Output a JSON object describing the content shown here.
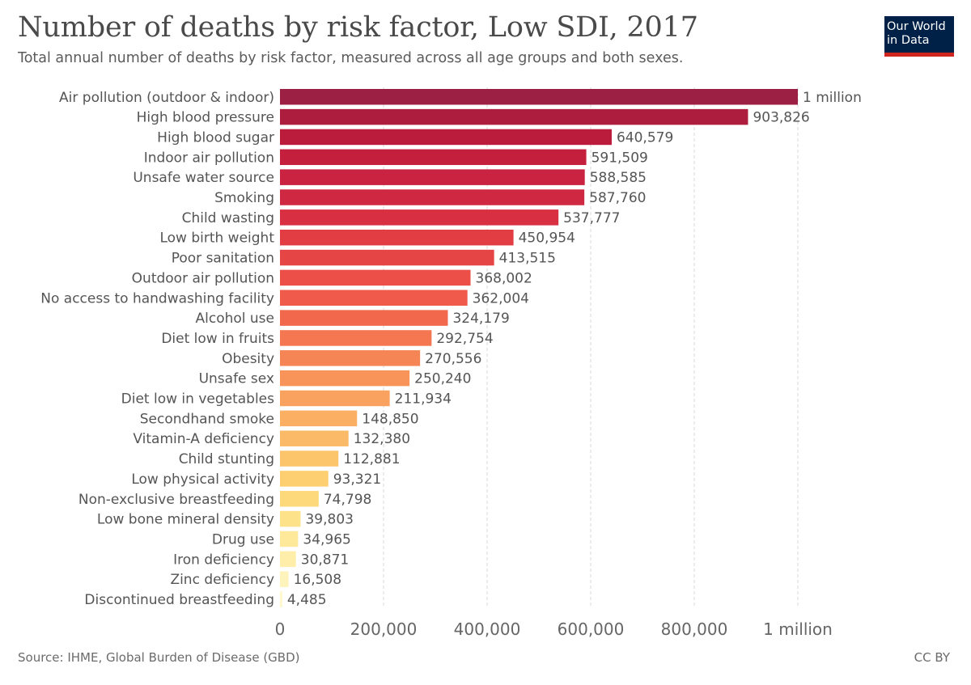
{
  "header": {
    "title": "Number of deaths by risk factor, Low SDI, 2017",
    "subtitle": "Total annual number of deaths by risk factor, measured across all age groups and both sexes."
  },
  "logo": {
    "line1": "Our World",
    "line2": "in Data"
  },
  "footer": {
    "source": "Source: IHME, Global Burden of Disease (GBD)",
    "license": "CC BY"
  },
  "chart_data": {
    "type": "bar",
    "orientation": "horizontal",
    "categories": [
      "Air pollution (outdoor & indoor)",
      "High blood pressure",
      "High blood sugar",
      "Indoor air pollution",
      "Unsafe water source",
      "Smoking",
      "Child wasting",
      "Low birth weight",
      "Poor sanitation",
      "Outdoor air pollution",
      "No access to handwashing facility",
      "Alcohol use",
      "Diet low in fruits",
      "Obesity",
      "Unsafe sex",
      "Diet low in vegetables",
      "Secondhand smoke",
      "Vitamin-A deficiency",
      "Child stunting",
      "Low physical activity",
      "Non-exclusive breastfeeding",
      "Low bone mineral density",
      "Drug use",
      "Iron deficiency",
      "Zinc deficiency",
      "Discontinued breastfeeding"
    ],
    "values": [
      1000000,
      903826,
      640579,
      591509,
      588585,
      587760,
      537777,
      450954,
      413515,
      368002,
      362004,
      324179,
      292754,
      270556,
      250240,
      211934,
      148850,
      132380,
      112881,
      93321,
      74798,
      39803,
      34965,
      30871,
      16508,
      4485
    ],
    "value_labels": [
      "1 million",
      "903,826",
      "640,579",
      "591,509",
      "588,585",
      "587,760",
      "537,777",
      "450,954",
      "413,515",
      "368,002",
      "362,004",
      "324,179",
      "292,754",
      "270,556",
      "250,240",
      "211,934",
      "148,850",
      "132,380",
      "112,881",
      "93,321",
      "74,798",
      "39,803",
      "34,965",
      "30,871",
      "16,508",
      "4,485"
    ],
    "colors": [
      "#9c2044",
      "#ad1e3e",
      "#bc1c3b",
      "#c51f3e",
      "#c92341",
      "#cf2842",
      "#d92f43",
      "#e13d43",
      "#e64545",
      "#eb4f48",
      "#ef5a4b",
      "#f1684d",
      "#f47752",
      "#f68556",
      "#f8935a",
      "#f9a15f",
      "#faaf63",
      "#fbba67",
      "#fcc56b",
      "#fdcf71",
      "#fdd97b",
      "#fee28a",
      "#fee89a",
      "#feeeaa",
      "#fef3bb",
      "#fef8cc"
    ],
    "xaxis": {
      "ticks": [
        0,
        200000,
        400000,
        600000,
        800000,
        1000000
      ],
      "tick_labels": [
        "0",
        "200,000",
        "400,000",
        "600,000",
        "800,000",
        "1 million"
      ]
    },
    "xlim": [
      0,
      1000000
    ],
    "grid": true
  }
}
